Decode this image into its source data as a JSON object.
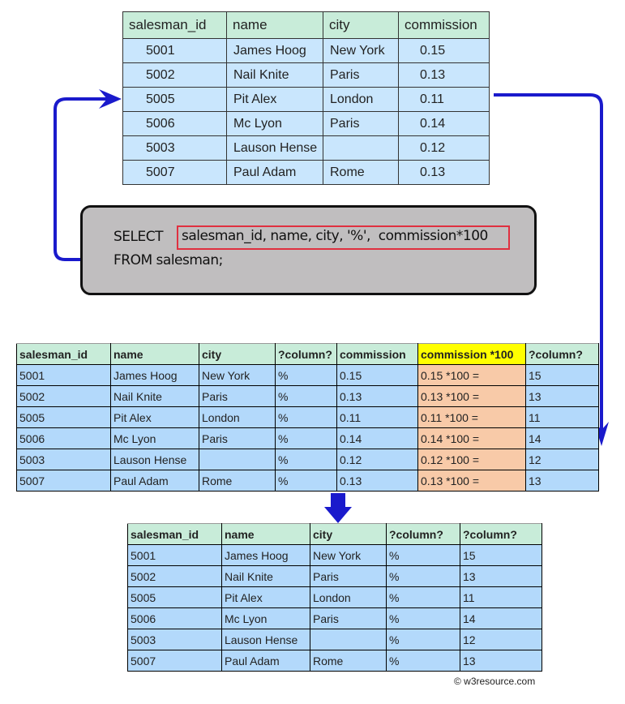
{
  "source_table": {
    "headers": [
      "salesman_id",
      "name",
      "city",
      "commission"
    ],
    "rows": [
      [
        "5001",
        "James Hoog",
        "New York",
        "0.15"
      ],
      [
        "5002",
        "Nail Knite",
        "Paris",
        "0.13"
      ],
      [
        "5005",
        "Pit Alex",
        "London",
        "0.11"
      ],
      [
        "5006",
        "Mc Lyon",
        "Paris",
        "0.14"
      ],
      [
        "5003",
        "Lauson Hense",
        "",
        "0.12"
      ],
      [
        "5007",
        "Paul Adam",
        "Rome",
        "0.13"
      ]
    ]
  },
  "query": {
    "keyword": "SELECT",
    "highlighted": "salesman_id, name, city, '%',  commission*100",
    "line2": "FROM salesman;"
  },
  "intermediate_table": {
    "headers": [
      "salesman_id",
      "name",
      "city",
      "?column?",
      "commission",
      "commission *100",
      "?column?"
    ],
    "highlight_column": 5,
    "rows": [
      [
        "5001",
        "James Hoog",
        "New York",
        "%",
        "0.15",
        "0.15 *100 =",
        "15"
      ],
      [
        "5002",
        "Nail Knite",
        "Paris",
        "%",
        "0.13",
        "0.13 *100 =",
        "13"
      ],
      [
        "5005",
        "Pit Alex",
        "London",
        "%",
        "0.11",
        "0.11 *100 =",
        "11"
      ],
      [
        "5006",
        "Mc Lyon",
        "Paris",
        "%",
        "0.14",
        "0.14 *100 =",
        "14"
      ],
      [
        "5003",
        "Lauson Hense",
        "",
        "%",
        "0.12",
        "0.12 *100 =",
        "12"
      ],
      [
        "5007",
        "Paul Adam",
        "Rome",
        "%",
        "0.13",
        "0.13 *100 =",
        "13"
      ]
    ]
  },
  "result_table": {
    "headers": [
      "salesman_id",
      "name",
      "city",
      "?column?",
      "?column?"
    ],
    "rows": [
      [
        "5001",
        "James Hoog",
        "New York",
        "%",
        "15"
      ],
      [
        "5002",
        "Nail Knite",
        "Paris",
        "%",
        "13"
      ],
      [
        "5005",
        "Pit Alex",
        "London",
        "%",
        "11"
      ],
      [
        "5006",
        "Mc Lyon",
        "Paris",
        "%",
        "14"
      ],
      [
        "5003",
        "Lauson Hense",
        "",
        "%",
        "12"
      ],
      [
        "5007",
        "Paul Adam",
        "Rome",
        "%",
        "13"
      ]
    ]
  },
  "colors": {
    "arrow": "#1a1acc",
    "header": "#c8ecd9",
    "row": "#b3d9fb",
    "highlight_header": "#ffff00",
    "highlight_cells": "#f8caa8",
    "sql_box": "#c0bebf",
    "sql_highlight_border": "#e03040"
  },
  "footer": {
    "copyright": "© w3resource.com"
  }
}
